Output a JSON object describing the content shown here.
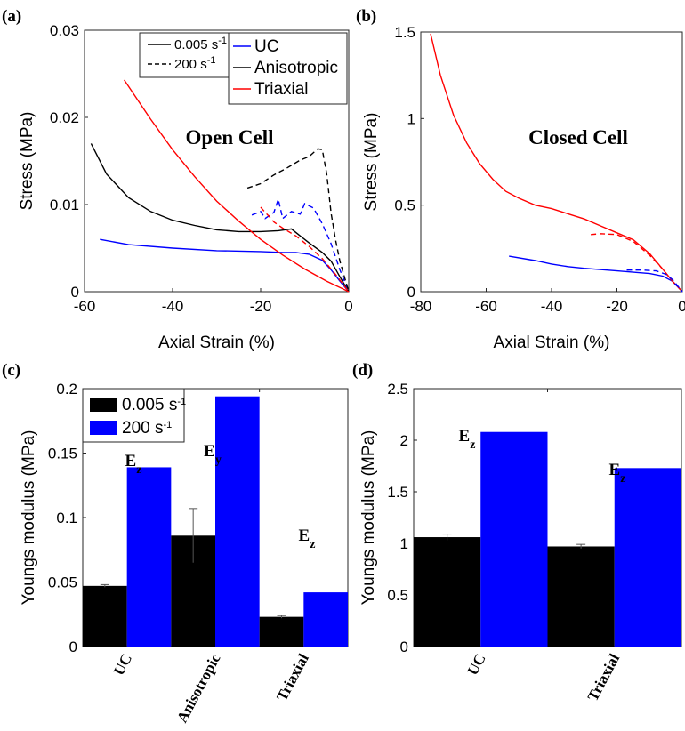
{
  "chart_data": [
    {
      "panel": "(a)",
      "type": "line",
      "annotation": "Open Cell",
      "xlabel": "Axial Strain (%)",
      "ylabel": "Stress (MPa)",
      "xlim": [
        -60,
        0
      ],
      "ylim": [
        0,
        0.03
      ],
      "xticks": [
        "-60",
        "-40",
        "-20",
        "0"
      ],
      "yticks": [
        "0",
        "0.01",
        "0.02",
        "0.03"
      ],
      "legend_rates": [
        {
          "label": "0.005 s",
          "sup": "-1",
          "dash": "solid"
        },
        {
          "label": "200 s",
          "sup": "-1",
          "dash": "dashed"
        }
      ],
      "legend_materials": [
        {
          "label": "UC",
          "color": "#0000ff"
        },
        {
          "label": "Anisotropic",
          "color": "#000000"
        },
        {
          "label": "Triaxial",
          "color": "#ff0000"
        }
      ],
      "series": [
        {
          "material": "UC",
          "rate": "0.005 s-1",
          "color": "#0000ff",
          "dash": "solid",
          "points": [
            [
              -56.5,
              0.006
            ],
            [
              -50,
              0.0054
            ],
            [
              -40,
              0.005
            ],
            [
              -30,
              0.0047
            ],
            [
              -20,
              0.0046
            ],
            [
              -15,
              0.0045
            ],
            [
              -12,
              0.0045
            ],
            [
              -9,
              0.0043
            ],
            [
              -6,
              0.0036
            ],
            [
              -4,
              0.0025
            ],
            [
              -2,
              0.0012
            ],
            [
              0,
              0
            ]
          ]
        },
        {
          "material": "Anisotropic",
          "rate": "0.005 s-1",
          "color": "#000000",
          "dash": "solid",
          "points": [
            [
              -58.5,
              0.017
            ],
            [
              -55,
              0.0135
            ],
            [
              -50,
              0.0108
            ],
            [
              -45,
              0.0092
            ],
            [
              -40,
              0.0082
            ],
            [
              -35,
              0.0076
            ],
            [
              -30,
              0.0071
            ],
            [
              -25,
              0.0069
            ],
            [
              -20,
              0.0069
            ],
            [
              -16,
              0.007
            ],
            [
              -13,
              0.0072
            ],
            [
              -11,
              0.0064
            ],
            [
              -9,
              0.0056
            ],
            [
              -6,
              0.0045
            ],
            [
              -4,
              0.0035
            ],
            [
              -2,
              0.0017
            ],
            [
              0,
              0
            ]
          ]
        },
        {
          "material": "Triaxial",
          "rate": "0.005 s-1",
          "color": "#ff0000",
          "dash": "solid",
          "points": [
            [
              -51,
              0.0243
            ],
            [
              -45,
              0.0198
            ],
            [
              -40,
              0.0163
            ],
            [
              -35,
              0.0132
            ],
            [
              -30,
              0.0104
            ],
            [
              -25,
              0.0081
            ],
            [
              -20,
              0.006
            ],
            [
              -15,
              0.0042
            ],
            [
              -10,
              0.0026
            ],
            [
              -5,
              0.0012
            ],
            [
              0,
              0
            ]
          ]
        },
        {
          "material": "UC",
          "rate": "200 s-1",
          "color": "#0000ff",
          "dash": "dashed",
          "points": [
            [
              -22,
              0.0088
            ],
            [
              -20,
              0.0092
            ],
            [
              -19,
              0.0084
            ],
            [
              -17,
              0.0091
            ],
            [
              -16,
              0.0106
            ],
            [
              -15,
              0.0084
            ],
            [
              -13,
              0.0092
            ],
            [
              -11,
              0.0089
            ],
            [
              -10,
              0.0101
            ],
            [
              -8,
              0.0096
            ],
            [
              -6,
              0.0078
            ],
            [
              -4,
              0.0055
            ],
            [
              -2,
              0.0025
            ],
            [
              0,
              0
            ]
          ]
        },
        {
          "material": "Anisotropic",
          "rate": "200 s-1",
          "color": "#000000",
          "dash": "dashed",
          "points": [
            [
              -23,
              0.0119
            ],
            [
              -20,
              0.0124
            ],
            [
              -17,
              0.0134
            ],
            [
              -14,
              0.0142
            ],
            [
              -11,
              0.0151
            ],
            [
              -9,
              0.0155
            ],
            [
              -7,
              0.0164
            ],
            [
              -6,
              0.0163
            ],
            [
              -5,
              0.0135
            ],
            [
              -4,
              0.009
            ],
            [
              -3,
              0.006
            ],
            [
              -2,
              0.0035
            ],
            [
              0,
              0
            ]
          ]
        },
        {
          "material": "Triaxial",
          "rate": "200 s-1",
          "color": "#ff0000",
          "dash": "dashed",
          "points": [
            [
              -20,
              0.0097
            ],
            [
              -19,
              0.0091
            ],
            [
              -18,
              0.0086
            ],
            [
              -17,
              0.008
            ],
            [
              -15,
              0.0073
            ],
            [
              -12,
              0.0064
            ],
            [
              -9,
              0.0052
            ],
            [
              -6,
              0.0038
            ],
            [
              -3,
              0.002
            ],
            [
              0,
              0
            ]
          ]
        }
      ]
    },
    {
      "panel": "(b)",
      "type": "line",
      "annotation": "Closed Cell",
      "xlabel": "Axial Strain (%)",
      "ylabel": "Stress (MPa)",
      "xlim": [
        -80,
        0
      ],
      "ylim": [
        0,
        1.5
      ],
      "xticks": [
        "-80",
        "-60",
        "-40",
        "-20",
        "0"
      ],
      "yticks": [
        "0",
        "0.5",
        "1",
        "1.5"
      ],
      "series": [
        {
          "material": "Triaxial",
          "rate": "0.005 s-1",
          "color": "#ff0000",
          "dash": "solid",
          "points": [
            [
              -77,
              1.49
            ],
            [
              -74,
              1.25
            ],
            [
              -70,
              1.02
            ],
            [
              -66,
              0.86
            ],
            [
              -62,
              0.74
            ],
            [
              -58,
              0.65
            ],
            [
              -54,
              0.58
            ],
            [
              -50,
              0.54
            ],
            [
              -45,
              0.5
            ],
            [
              -40,
              0.48
            ],
            [
              -35,
              0.45
            ],
            [
              -30,
              0.42
            ],
            [
              -25,
              0.38
            ],
            [
              -20,
              0.34
            ],
            [
              -15,
              0.3
            ],
            [
              -10,
              0.22
            ],
            [
              -6,
              0.13
            ],
            [
              -3,
              0.06
            ],
            [
              0,
              0
            ]
          ]
        },
        {
          "material": "UC",
          "rate": "0.005 s-1",
          "color": "#0000ff",
          "dash": "solid",
          "points": [
            [
              -53,
              0.205
            ],
            [
              -45,
              0.18
            ],
            [
              -40,
              0.16
            ],
            [
              -35,
              0.145
            ],
            [
              -30,
              0.135
            ],
            [
              -20,
              0.12
            ],
            [
              -10,
              0.105
            ],
            [
              -6,
              0.09
            ],
            [
              -3,
              0.06
            ],
            [
              0,
              0
            ]
          ]
        },
        {
          "material": "Triaxial",
          "rate": "200 s-1",
          "color": "#ff0000",
          "dash": "dashed",
          "points": [
            [
              -28,
              0.33
            ],
            [
              -25,
              0.335
            ],
            [
              -20,
              0.33
            ],
            [
              -15,
              0.29
            ],
            [
              -10,
              0.21
            ],
            [
              -6,
              0.13
            ],
            [
              -3,
              0.06
            ],
            [
              0,
              0
            ]
          ]
        },
        {
          "material": "UC",
          "rate": "200 s-1",
          "color": "#0000ff",
          "dash": "dashed",
          "points": [
            [
              -17,
              0.125
            ],
            [
              -12,
              0.125
            ],
            [
              -8,
              0.12
            ],
            [
              -5,
              0.1
            ],
            [
              -3,
              0.07
            ],
            [
              0,
              0
            ]
          ]
        }
      ]
    },
    {
      "panel": "(c)",
      "type": "bar",
      "ylabel": "Youngs modulus (MPa)",
      "ylim": [
        0,
        0.2
      ],
      "yticks": [
        "0",
        "0.05",
        "0.1",
        "0.15",
        "0.2"
      ],
      "categories": [
        "UC",
        "Anisotropic",
        "Triaxial"
      ],
      "legend": [
        {
          "label": "0.005 s",
          "sup": "-1",
          "color": "#000000"
        },
        {
          "label": "200 s",
          "sup": "-1",
          "color": "#0000ff"
        }
      ],
      "series": [
        {
          "label": "0.005 s-1",
          "color": "#000000",
          "values": [
            0.047,
            0.086,
            0.023
          ],
          "errors": [
            0.001,
            0.021,
            0.001
          ]
        },
        {
          "label": "200 s-1",
          "color": "#0000ff",
          "values": [
            0.139,
            0.194,
            0.042
          ]
        }
      ],
      "annotations": [
        {
          "base": "E",
          "sub": "z",
          "category": 0
        },
        {
          "base": "E",
          "sub": "y",
          "category": 1
        },
        {
          "base": "E",
          "sub": "z",
          "category": 2
        }
      ]
    },
    {
      "panel": "(d)",
      "type": "bar",
      "ylabel": "Youngs modulus (MPa)",
      "ylim": [
        0,
        2.5
      ],
      "yticks": [
        "0",
        "0.5",
        "1",
        "1.5",
        "2",
        "2.5"
      ],
      "categories": [
        "UC",
        "Triaxial"
      ],
      "series": [
        {
          "label": "0.005 s-1",
          "color": "#000000",
          "values": [
            1.06,
            0.97
          ],
          "errors": [
            0.03,
            0.02
          ]
        },
        {
          "label": "200 s-1",
          "color": "#0000ff",
          "values": [
            2.08,
            1.73
          ]
        }
      ],
      "annotations": [
        {
          "base": "E",
          "sub": "z",
          "category": 0
        },
        {
          "base": "E",
          "sub": "z",
          "category": 1
        }
      ]
    }
  ]
}
